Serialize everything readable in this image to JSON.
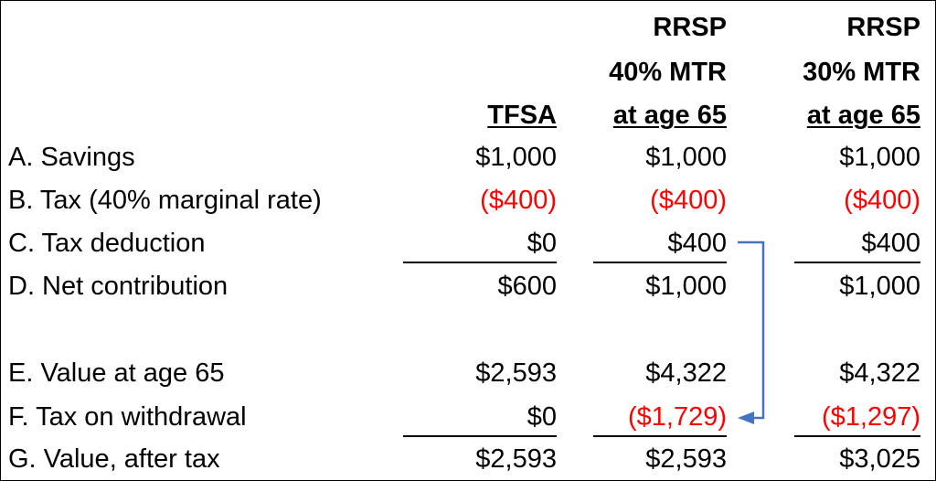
{
  "columns": {
    "tfsa": {
      "header": [
        "TFSA"
      ]
    },
    "rrsp40": {
      "header": [
        "RRSP",
        "40% MTR",
        "at age 65"
      ]
    },
    "rrsp30": {
      "header": [
        "RRSP",
        "30% MTR",
        "at age 65"
      ]
    }
  },
  "rows": [
    {
      "label": "A. Savings",
      "tfsa": "$1,000",
      "rrsp40": "$1,000",
      "rrsp30": "$1,000"
    },
    {
      "label": "B. Tax (40% marginal rate)",
      "tfsa": "($400)",
      "rrsp40": "($400)",
      "rrsp30": "($400)"
    },
    {
      "label": "C. Tax deduction",
      "tfsa": "$0",
      "rrsp40": "$400",
      "rrsp30": "$400"
    },
    {
      "label": "D. Net contribution",
      "tfsa": "$600",
      "rrsp40": "$1,000",
      "rrsp30": "$1,000"
    },
    {
      "label": "E. Value at age 65",
      "tfsa": "$2,593",
      "rrsp40": "$4,322",
      "rrsp30": "$4,322"
    },
    {
      "label": "F. Tax on withdrawal",
      "tfsa": "$0",
      "rrsp40": "($1,729)",
      "rrsp30": "($1,297)"
    },
    {
      "label": "G. Value, after tax",
      "tfsa": "$2,593",
      "rrsp40": "$2,593",
      "rrsp30": "$3,025"
    }
  ],
  "colors": {
    "negative": "#ff0000",
    "arrow": "#4472c4",
    "text": "#000000"
  },
  "arrow": {
    "from": "C. Tax deduction / RRSP 40% MTR",
    "to": "F. Tax on withdrawal / RRSP 40% MTR"
  }
}
